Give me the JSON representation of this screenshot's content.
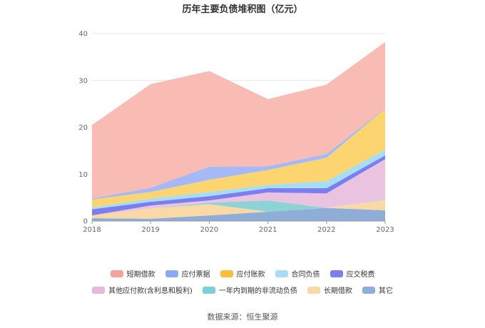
{
  "source_text": "数据来源：恒生聚源",
  "chart_data": {
    "type": "area",
    "stacked": true,
    "title": "历年主要负债堆积图（亿元）",
    "xlabel": "",
    "ylabel": "",
    "categories": [
      "2018",
      "2019",
      "2020",
      "2021",
      "2022",
      "2023"
    ],
    "ylim": [
      0,
      40
    ],
    "yticks": [
      0,
      10,
      20,
      30,
      40
    ],
    "grid": true,
    "legend_position": "bottom",
    "series": [
      {
        "name": "其它",
        "color": "#8eaed8",
        "values": [
          0.6,
          0.5,
          1.2,
          2.0,
          2.8,
          2.3
        ]
      },
      {
        "name": "长期借款",
        "color": "#fbd9a6",
        "values": [
          0.6,
          2.2,
          2.4,
          0.0,
          0.0,
          2.2
        ]
      },
      {
        "name": "一年内到期的非流动负债",
        "color": "#8dd3d6",
        "values": [
          0.0,
          0.0,
          0.3,
          2.4,
          0.0,
          0.1
        ]
      },
      {
        "name": "其他应付款(含利息和股利)",
        "color": "#eac3e0",
        "values": [
          0.0,
          0.6,
          0.5,
          1.7,
          3.1,
          8.6
        ]
      },
      {
        "name": "应交税费",
        "color": "#7b7fed",
        "values": [
          1.3,
          0.8,
          0.9,
          0.9,
          1.1,
          0.8
        ]
      },
      {
        "name": "合同负债",
        "color": "#a6dcf4",
        "values": [
          0.4,
          0.7,
          0.9,
          0.7,
          1.5,
          1.2
        ]
      },
      {
        "name": "应付账款",
        "color": "#fcd571",
        "values": [
          1.7,
          1.4,
          2.6,
          3.2,
          5.0,
          8.8
        ]
      },
      {
        "name": "应付票据",
        "color": "#a6b9f7",
        "values": [
          0.2,
          0.9,
          2.8,
          0.8,
          0.8,
          0.1
        ]
      },
      {
        "name": "短期借款",
        "color": "#f9bcb5",
        "values": [
          15.7,
          22.1,
          20.4,
          14.3,
          14.8,
          14.1
        ]
      }
    ],
    "legend": [
      [
        "短期借款",
        "应付票据",
        "应付账款",
        "合同负债",
        "应交税费"
      ],
      [
        "其他应付款(含利息和股利)",
        "一年内到期的非流动负债",
        "长期借款",
        "其它"
      ]
    ],
    "legend_colors": {
      "短期借款": "#f4a49a",
      "应付票据": "#8ea8f2",
      "应付账款": "#f9bf3b",
      "合同负债": "#a6dcf4",
      "应交税费": "#7b7fed",
      "其他应付款(含利息和股利)": "#e8b8dc",
      "一年内到期的非流动负债": "#7ccfd2",
      "长期借款": "#fbd9a6",
      "其它": "#8eaed8"
    }
  }
}
